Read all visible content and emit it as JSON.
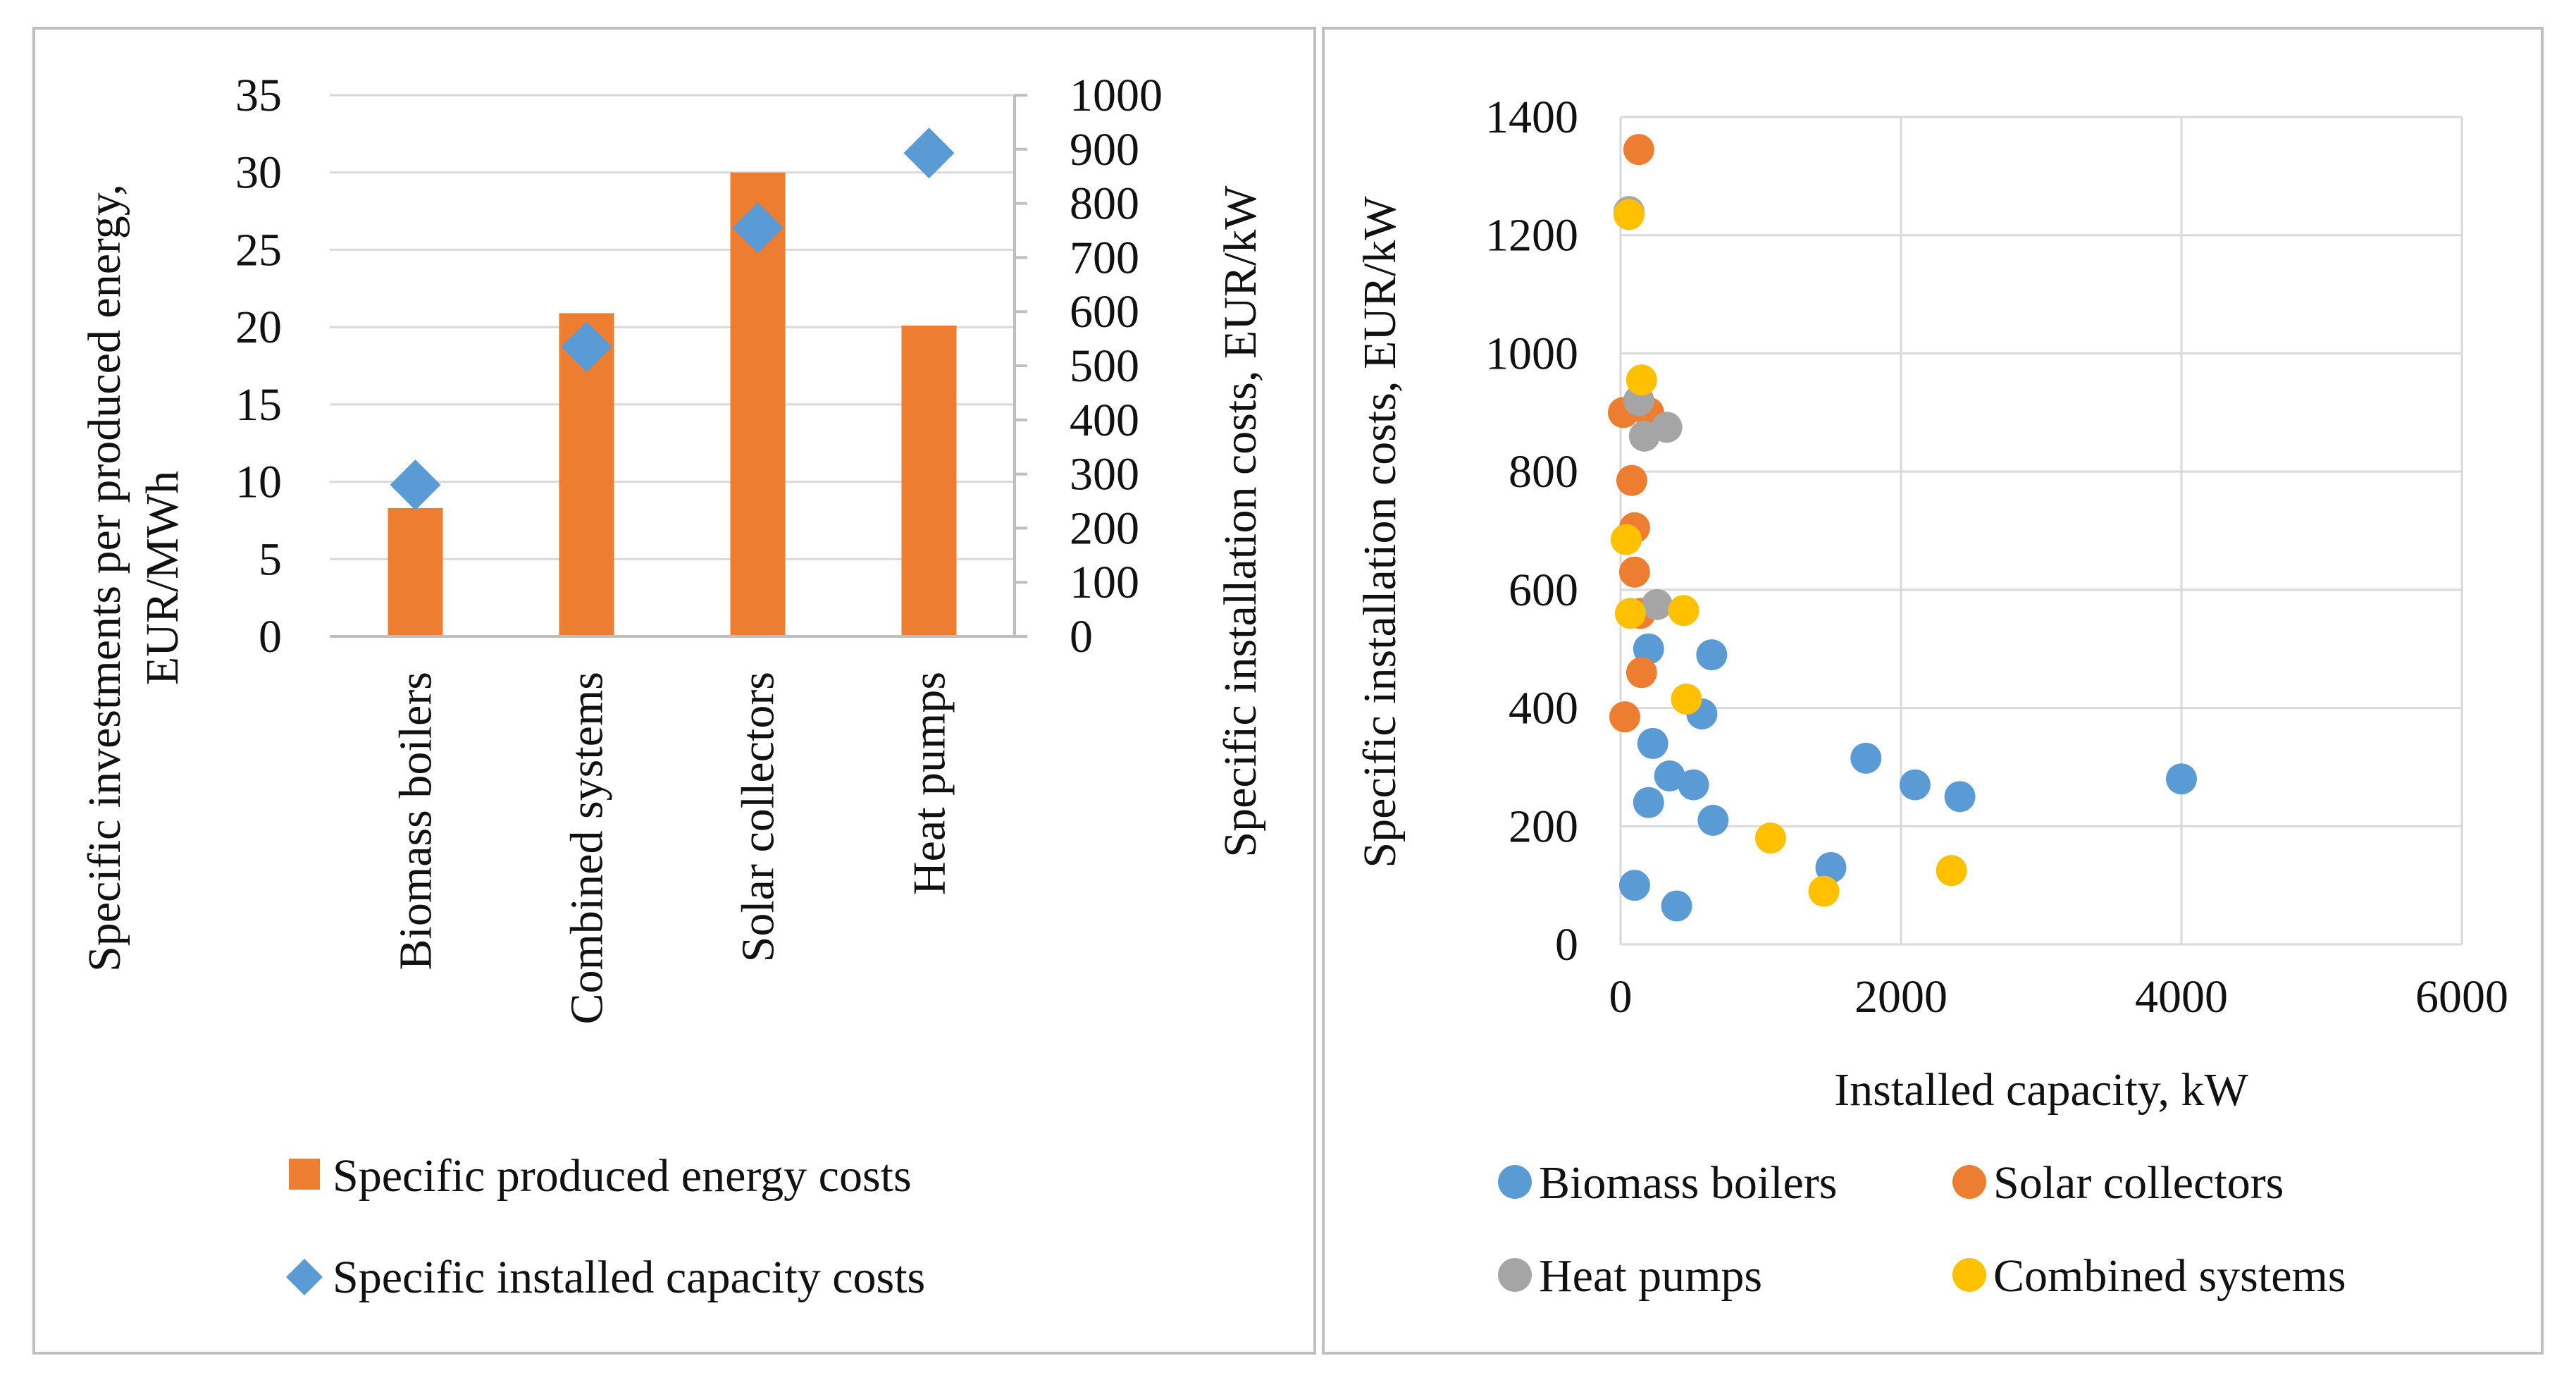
{
  "chart_data": [
    {
      "type": "bar",
      "categories": [
        "Biomass boilers",
        "Combined systems",
        "Solar collectors",
        "Heat pumps"
      ],
      "series": [
        {
          "name": "Specific produced energy costs",
          "axis": "left",
          "kind": "bar",
          "values": [
            8.3,
            20.9,
            30.0,
            20.1
          ]
        },
        {
          "name": "Specific installed capacity costs",
          "axis": "right",
          "kind": "marker",
          "values": [
            280,
            535,
            755,
            893
          ]
        }
      ],
      "ylabel": "Specific investments per produced energy, EUR/MWh",
      "y2label": "Specific installation costs, EUR/kW",
      "ylim": [
        0,
        35
      ],
      "y_ticks": [
        "0",
        "5",
        "10",
        "15",
        "20",
        "25",
        "30",
        "35"
      ],
      "y2lim": [
        0,
        1000
      ],
      "y2_ticks": [
        "0",
        "100",
        "200",
        "300",
        "400",
        "500",
        "600",
        "700",
        "800",
        "900",
        "1000"
      ],
      "legend": [
        "Specific produced energy costs",
        "Specific installed capacity costs"
      ],
      "legend_position": "bottom",
      "colors": {
        "bar": "#ed7d31",
        "marker": "#5b9bd5"
      }
    },
    {
      "type": "scatter",
      "xlabel": "Installed capacity, kW",
      "ylabel": "Specific installation costs, EUR/kW",
      "xlim": [
        0,
        6000
      ],
      "ylim": [
        0,
        1400
      ],
      "x_ticks": [
        "0",
        "2000",
        "4000",
        "6000"
      ],
      "y_ticks": [
        "0",
        "200",
        "400",
        "600",
        "800",
        "1000",
        "1200",
        "1400"
      ],
      "grid": true,
      "legend_position": "bottom",
      "series": [
        {
          "name": "Biomass boilers",
          "color": "#5b9bd5",
          "points": [
            [
              100,
              100
            ],
            [
              200,
              240
            ],
            [
              230,
              340
            ],
            [
              350,
              285
            ],
            [
              400,
              65
            ],
            [
              520,
              270
            ],
            [
              580,
              390
            ],
            [
              660,
              210
            ],
            [
              650,
              490
            ],
            [
              200,
              500
            ],
            [
              1500,
              130
            ],
            [
              1750,
              315
            ],
            [
              2100,
              270
            ],
            [
              2420,
              250
            ],
            [
              4000,
              280
            ]
          ]
        },
        {
          "name": "Solar collectors",
          "color": "#ed7d31",
          "points": [
            [
              130,
              1345
            ],
            [
              20,
              900
            ],
            [
              200,
              900
            ],
            [
              80,
              785
            ],
            [
              100,
              705
            ],
            [
              100,
              630
            ],
            [
              140,
              560
            ],
            [
              150,
              460
            ],
            [
              30,
              385
            ]
          ]
        },
        {
          "name": "Heat pumps",
          "color": "#a5a5a5",
          "points": [
            [
              60,
              1240
            ],
            [
              130,
              920
            ],
            [
              170,
              860
            ],
            [
              330,
              875
            ],
            [
              260,
              575
            ]
          ]
        },
        {
          "name": "Combined systems",
          "color": "#ffc000",
          "points": [
            [
              60,
              1235
            ],
            [
              150,
              955
            ],
            [
              40,
              685
            ],
            [
              70,
              560
            ],
            [
              450,
              565
            ],
            [
              470,
              415
            ],
            [
              1070,
              180
            ],
            [
              1450,
              90
            ],
            [
              2360,
              125
            ]
          ]
        }
      ],
      "legend": [
        "Biomass boilers",
        "Solar collectors",
        "Heat pumps",
        "Combined systems"
      ]
    }
  ]
}
